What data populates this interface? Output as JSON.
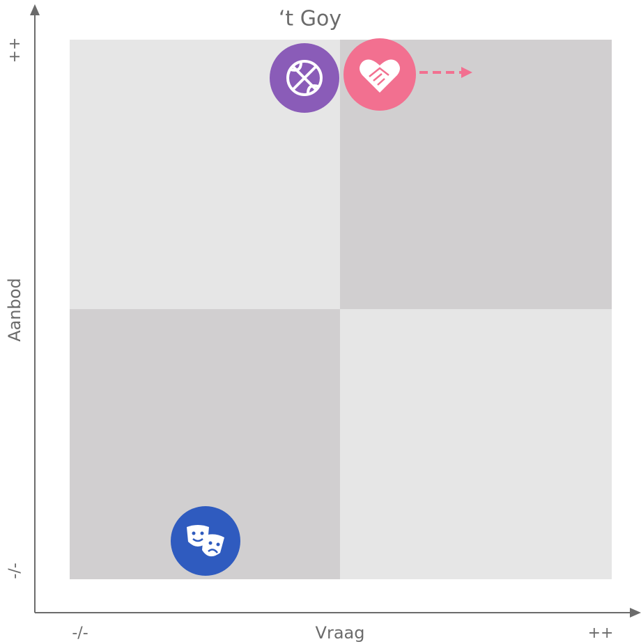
{
  "title": "‘t Goy",
  "axes": {
    "y": {
      "label": "Aanbod",
      "high": "++",
      "low": "-/-"
    },
    "x": {
      "label": "Vraag",
      "low": "-/-",
      "high": "++"
    }
  }
}
